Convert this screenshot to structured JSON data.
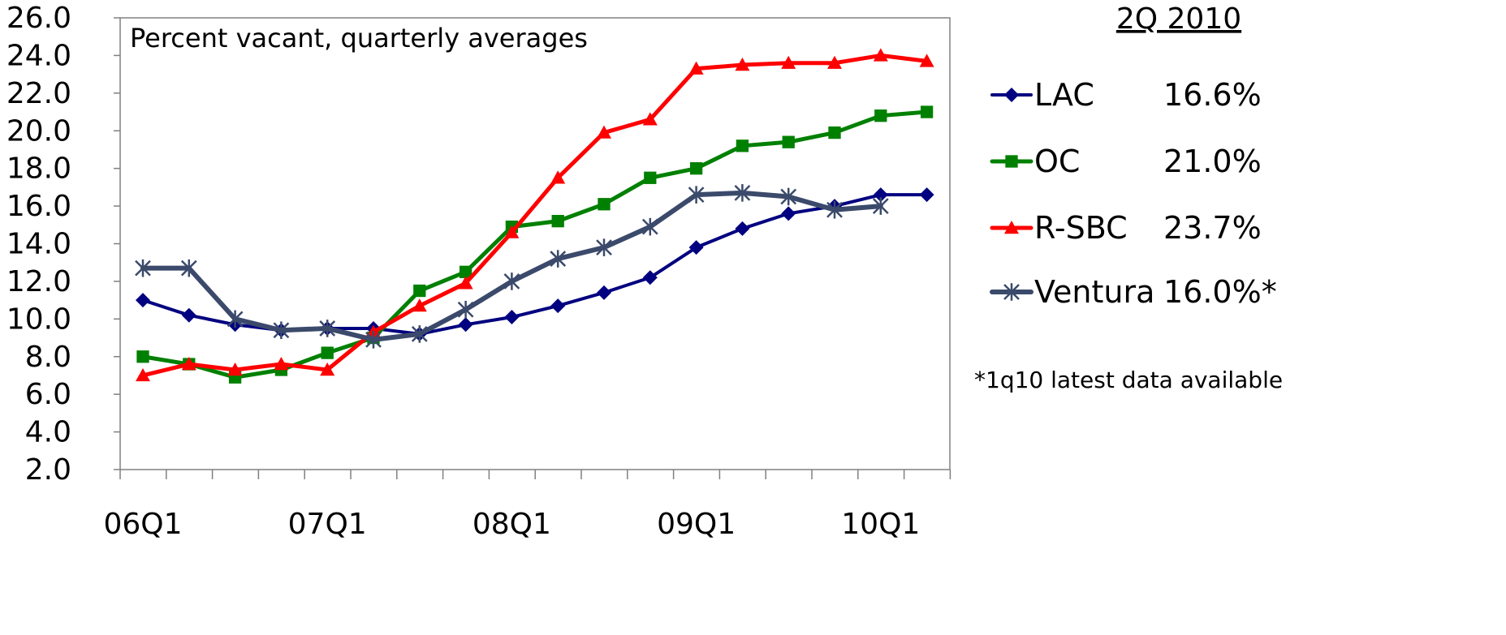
{
  "chart_data": {
    "type": "line",
    "annotation": "Percent vacant, quarterly averages",
    "period_label": "2Q 2010",
    "footnote": "*1q10 latest data available",
    "ylim": [
      2.0,
      26.0
    ],
    "yticks": [
      "2.0",
      "4.0",
      "6.0",
      "8.0",
      "10.0",
      "12.0",
      "14.0",
      "16.0",
      "18.0",
      "20.0",
      "22.0",
      "24.0",
      "26.0"
    ],
    "x": [
      "06Q1",
      "06Q2",
      "06Q3",
      "06Q4",
      "07Q1",
      "07Q2",
      "07Q3",
      "07Q4",
      "08Q1",
      "08Q2",
      "08Q3",
      "08Q4",
      "09Q1",
      "09Q2",
      "09Q3",
      "09Q4",
      "10Q1",
      "10Q2"
    ],
    "xtick_labels": [
      "06Q1",
      "07Q1",
      "08Q1",
      "09Q1",
      "10Q1"
    ],
    "grid": false,
    "legend_position": "right",
    "series": [
      {
        "name": "LAC",
        "color": "#000080",
        "marker": "diamond",
        "latest": "16.6%",
        "values": [
          11.0,
          10.2,
          9.7,
          9.4,
          9.5,
          9.5,
          9.2,
          9.7,
          10.1,
          10.7,
          11.4,
          12.2,
          13.8,
          14.8,
          15.6,
          16.0,
          16.6,
          16.6
        ]
      },
      {
        "name": "OC",
        "color": "#008000",
        "marker": "square",
        "latest": "21.0%",
        "values": [
          8.0,
          7.6,
          6.9,
          7.3,
          8.2,
          9.0,
          11.5,
          12.5,
          14.9,
          15.2,
          16.1,
          17.5,
          18.0,
          19.2,
          19.4,
          19.9,
          20.8,
          21.0
        ]
      },
      {
        "name": "R-SBC",
        "color": "#ff0000",
        "marker": "triangle",
        "latest": "23.7%",
        "values": [
          7.0,
          7.6,
          7.3,
          7.6,
          7.3,
          9.3,
          10.7,
          11.9,
          14.6,
          17.5,
          19.9,
          20.6,
          23.3,
          23.5,
          23.6,
          23.6,
          24.0,
          23.7
        ]
      },
      {
        "name": "Ventura",
        "color": "#3b4a6b",
        "marker": "asterisk",
        "latest": "16.0%*",
        "values": [
          12.7,
          12.7,
          10.0,
          9.4,
          9.5,
          8.9,
          9.2,
          10.5,
          12.0,
          13.2,
          13.8,
          14.9,
          16.6,
          16.7,
          16.5,
          15.8,
          16.0,
          null
        ]
      }
    ]
  }
}
